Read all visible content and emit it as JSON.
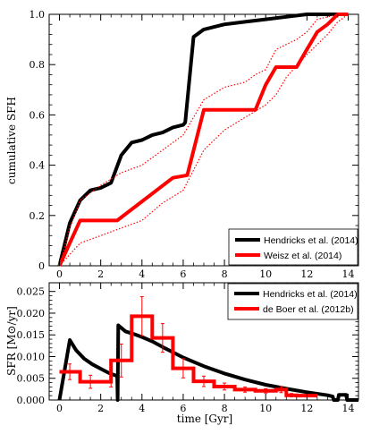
{
  "chart_data": [
    {
      "type": "line",
      "ylabel": "cumulative SFH",
      "xlim": [
        -0.5,
        14.5
      ],
      "ylim": [
        0,
        1.0
      ],
      "x_ticks": [
        "0",
        "2",
        "4",
        "6",
        "8",
        "10",
        "12",
        "14"
      ],
      "y_ticks": [
        "0",
        "0.2",
        "0.4",
        "0.6",
        "0.8",
        "1.0"
      ],
      "legend": "bottom-right",
      "series": [
        {
          "name": "Hendricks et al. (2014)",
          "color": "#000000",
          "style": "solid-thick",
          "points": [
            [
              0,
              0
            ],
            [
              0.5,
              0.17
            ],
            [
              1.0,
              0.26
            ],
            [
              1.5,
              0.3
            ],
            [
              2.0,
              0.31
            ],
            [
              2.5,
              0.33
            ],
            [
              3.0,
              0.44
            ],
            [
              3.5,
              0.49
            ],
            [
              4.0,
              0.5
            ],
            [
              4.5,
              0.52
            ],
            [
              5.0,
              0.53
            ],
            [
              5.5,
              0.55
            ],
            [
              6.0,
              0.56
            ],
            [
              6.1,
              0.57
            ],
            [
              6.5,
              0.91
            ],
            [
              7.0,
              0.94
            ],
            [
              8.0,
              0.96
            ],
            [
              9.0,
              0.97
            ],
            [
              10.0,
              0.98
            ],
            [
              11.0,
              0.99
            ],
            [
              12.0,
              1.0
            ],
            [
              14.0,
              1.0
            ]
          ]
        },
        {
          "name": "Weisz et al. (2014)",
          "color": "#ff0000",
          "style": "solid-thick",
          "points": [
            [
              0,
              0
            ],
            [
              1.0,
              0.18
            ],
            [
              2.8,
              0.18
            ],
            [
              5.5,
              0.35
            ],
            [
              6.2,
              0.36
            ],
            [
              7.0,
              0.62
            ],
            [
              9.5,
              0.62
            ],
            [
              10.0,
              0.72
            ],
            [
              10.5,
              0.79
            ],
            [
              11.5,
              0.79
            ],
            [
              12.0,
              0.86
            ],
            [
              12.5,
              0.93
            ],
            [
              13.0,
              0.96
            ],
            [
              13.5,
              1.0
            ],
            [
              14.0,
              1.0
            ]
          ]
        },
        {
          "name": "",
          "color": "#ff0000",
          "style": "dotted",
          "points": [
            [
              0,
              0
            ],
            [
              0.5,
              0.15
            ],
            [
              1.0,
              0.26
            ],
            [
              2.0,
              0.32
            ],
            [
              3.0,
              0.37
            ],
            [
              4.0,
              0.4
            ],
            [
              5.0,
              0.46
            ],
            [
              6.0,
              0.52
            ],
            [
              7.0,
              0.66
            ],
            [
              8.0,
              0.71
            ],
            [
              9.0,
              0.73
            ],
            [
              9.5,
              0.76
            ],
            [
              10.0,
              0.78
            ],
            [
              10.5,
              0.86
            ],
            [
              11.0,
              0.88
            ],
            [
              11.5,
              0.9
            ],
            [
              12.0,
              0.93
            ],
            [
              12.5,
              0.98
            ],
            [
              13.5,
              1.0
            ],
            [
              14.0,
              1.0
            ]
          ]
        },
        {
          "name": "",
          "color": "#ff0000",
          "style": "dotted",
          "points": [
            [
              0,
              0
            ],
            [
              1.0,
              0.09
            ],
            [
              2.0,
              0.12
            ],
            [
              3.0,
              0.15
            ],
            [
              4.0,
              0.18
            ],
            [
              5.0,
              0.25
            ],
            [
              6.0,
              0.3
            ],
            [
              7.0,
              0.46
            ],
            [
              8.0,
              0.54
            ],
            [
              9.0,
              0.59
            ],
            [
              10.0,
              0.64
            ],
            [
              10.5,
              0.68
            ],
            [
              11.0,
              0.75
            ],
            [
              12.0,
              0.84
            ],
            [
              13.0,
              0.92
            ],
            [
              13.5,
              0.97
            ],
            [
              14.0,
              1.0
            ]
          ]
        }
      ]
    },
    {
      "type": "line",
      "xlabel": "time [Gyr]",
      "ylabel": "SFR [M⊙/yr]",
      "xlim": [
        -0.5,
        14.5
      ],
      "ylim": [
        0,
        0.027
      ],
      "x_ticks": [
        "0",
        "2",
        "4",
        "6",
        "8",
        "10",
        "12",
        "14"
      ],
      "y_ticks": [
        "0.000",
        "0.005",
        "0.010",
        "0.015",
        "0.020",
        "0.025"
      ],
      "legend": "top-right",
      "series": [
        {
          "name": "Hendricks et al. (2014)",
          "color": "#000000",
          "style": "solid-thick",
          "points": [
            [
              0,
              0
            ],
            [
              0.5,
              0.0138
            ],
            [
              0.8,
              0.0115
            ],
            [
              1.2,
              0.0095
            ],
            [
              1.6,
              0.0082
            ],
            [
              2.0,
              0.0072
            ],
            [
              2.4,
              0.0062
            ],
            [
              2.8,
              0.0055
            ],
            [
              2.82,
              0.0
            ],
            [
              2.85,
              0.0172
            ],
            [
              3.2,
              0.0158
            ],
            [
              3.6,
              0.0152
            ],
            [
              4.0,
              0.0145
            ],
            [
              4.5,
              0.0135
            ],
            [
              5.0,
              0.0122
            ],
            [
              6.0,
              0.0098
            ],
            [
              7.0,
              0.0078
            ],
            [
              8.0,
              0.0061
            ],
            [
              9.0,
              0.0047
            ],
            [
              10.0,
              0.0035
            ],
            [
              11.0,
              0.0026
            ],
            [
              12.0,
              0.0018
            ],
            [
              13.0,
              0.0011
            ],
            [
              13.25,
              0.0008
            ],
            [
              13.3,
              0.0
            ],
            [
              13.5,
              0.0
            ],
            [
              13.55,
              0.0012
            ],
            [
              13.9,
              0.0012
            ],
            [
              13.95,
              0.0
            ],
            [
              14.5,
              0.0
            ]
          ]
        },
        {
          "name": "de Boer et al. (2012b)",
          "color": "#ff0000",
          "style": "step",
          "steps": [
            [
              0.0,
              1.0,
              0.0065
            ],
            [
              1.0,
              2.0,
              0.0042
            ],
            [
              2.0,
              2.5,
              0.0042
            ],
            [
              2.5,
              3.5,
              0.0091
            ],
            [
              3.5,
              4.5,
              0.0193
            ],
            [
              4.5,
              5.5,
              0.0143
            ],
            [
              5.5,
              6.5,
              0.0073
            ],
            [
              6.5,
              7.5,
              0.0043
            ],
            [
              7.5,
              8.5,
              0.0031
            ],
            [
              8.5,
              9.5,
              0.0024
            ],
            [
              9.5,
              10.5,
              0.0021
            ],
            [
              10.5,
              11.0,
              0.0024
            ],
            [
              11.0,
              11.5,
              0.0011
            ],
            [
              11.5,
              12.5,
              0.001
            ]
          ],
          "error_bars": [
            [
              0.5,
              0.0065,
              0.0018
            ],
            [
              1.5,
              0.0042,
              0.0015
            ],
            [
              2.5,
              0.0042,
              0.0012
            ],
            [
              3.0,
              0.0091,
              0.0038
            ],
            [
              4.0,
              0.0193,
              0.0045
            ],
            [
              5.0,
              0.0143,
              0.0033
            ],
            [
              6.0,
              0.0073,
              0.0022
            ],
            [
              7.0,
              0.0043,
              0.0012
            ],
            [
              8.0,
              0.0031,
              0.0008
            ],
            [
              9.0,
              0.0024,
              0.0006
            ],
            [
              10.0,
              0.0021,
              0.0005
            ],
            [
              10.75,
              0.0024,
              0.0007
            ],
            [
              11.25,
              0.0011,
              0.0004
            ],
            [
              12.0,
              0.001,
              0.0003
            ]
          ]
        }
      ]
    }
  ]
}
